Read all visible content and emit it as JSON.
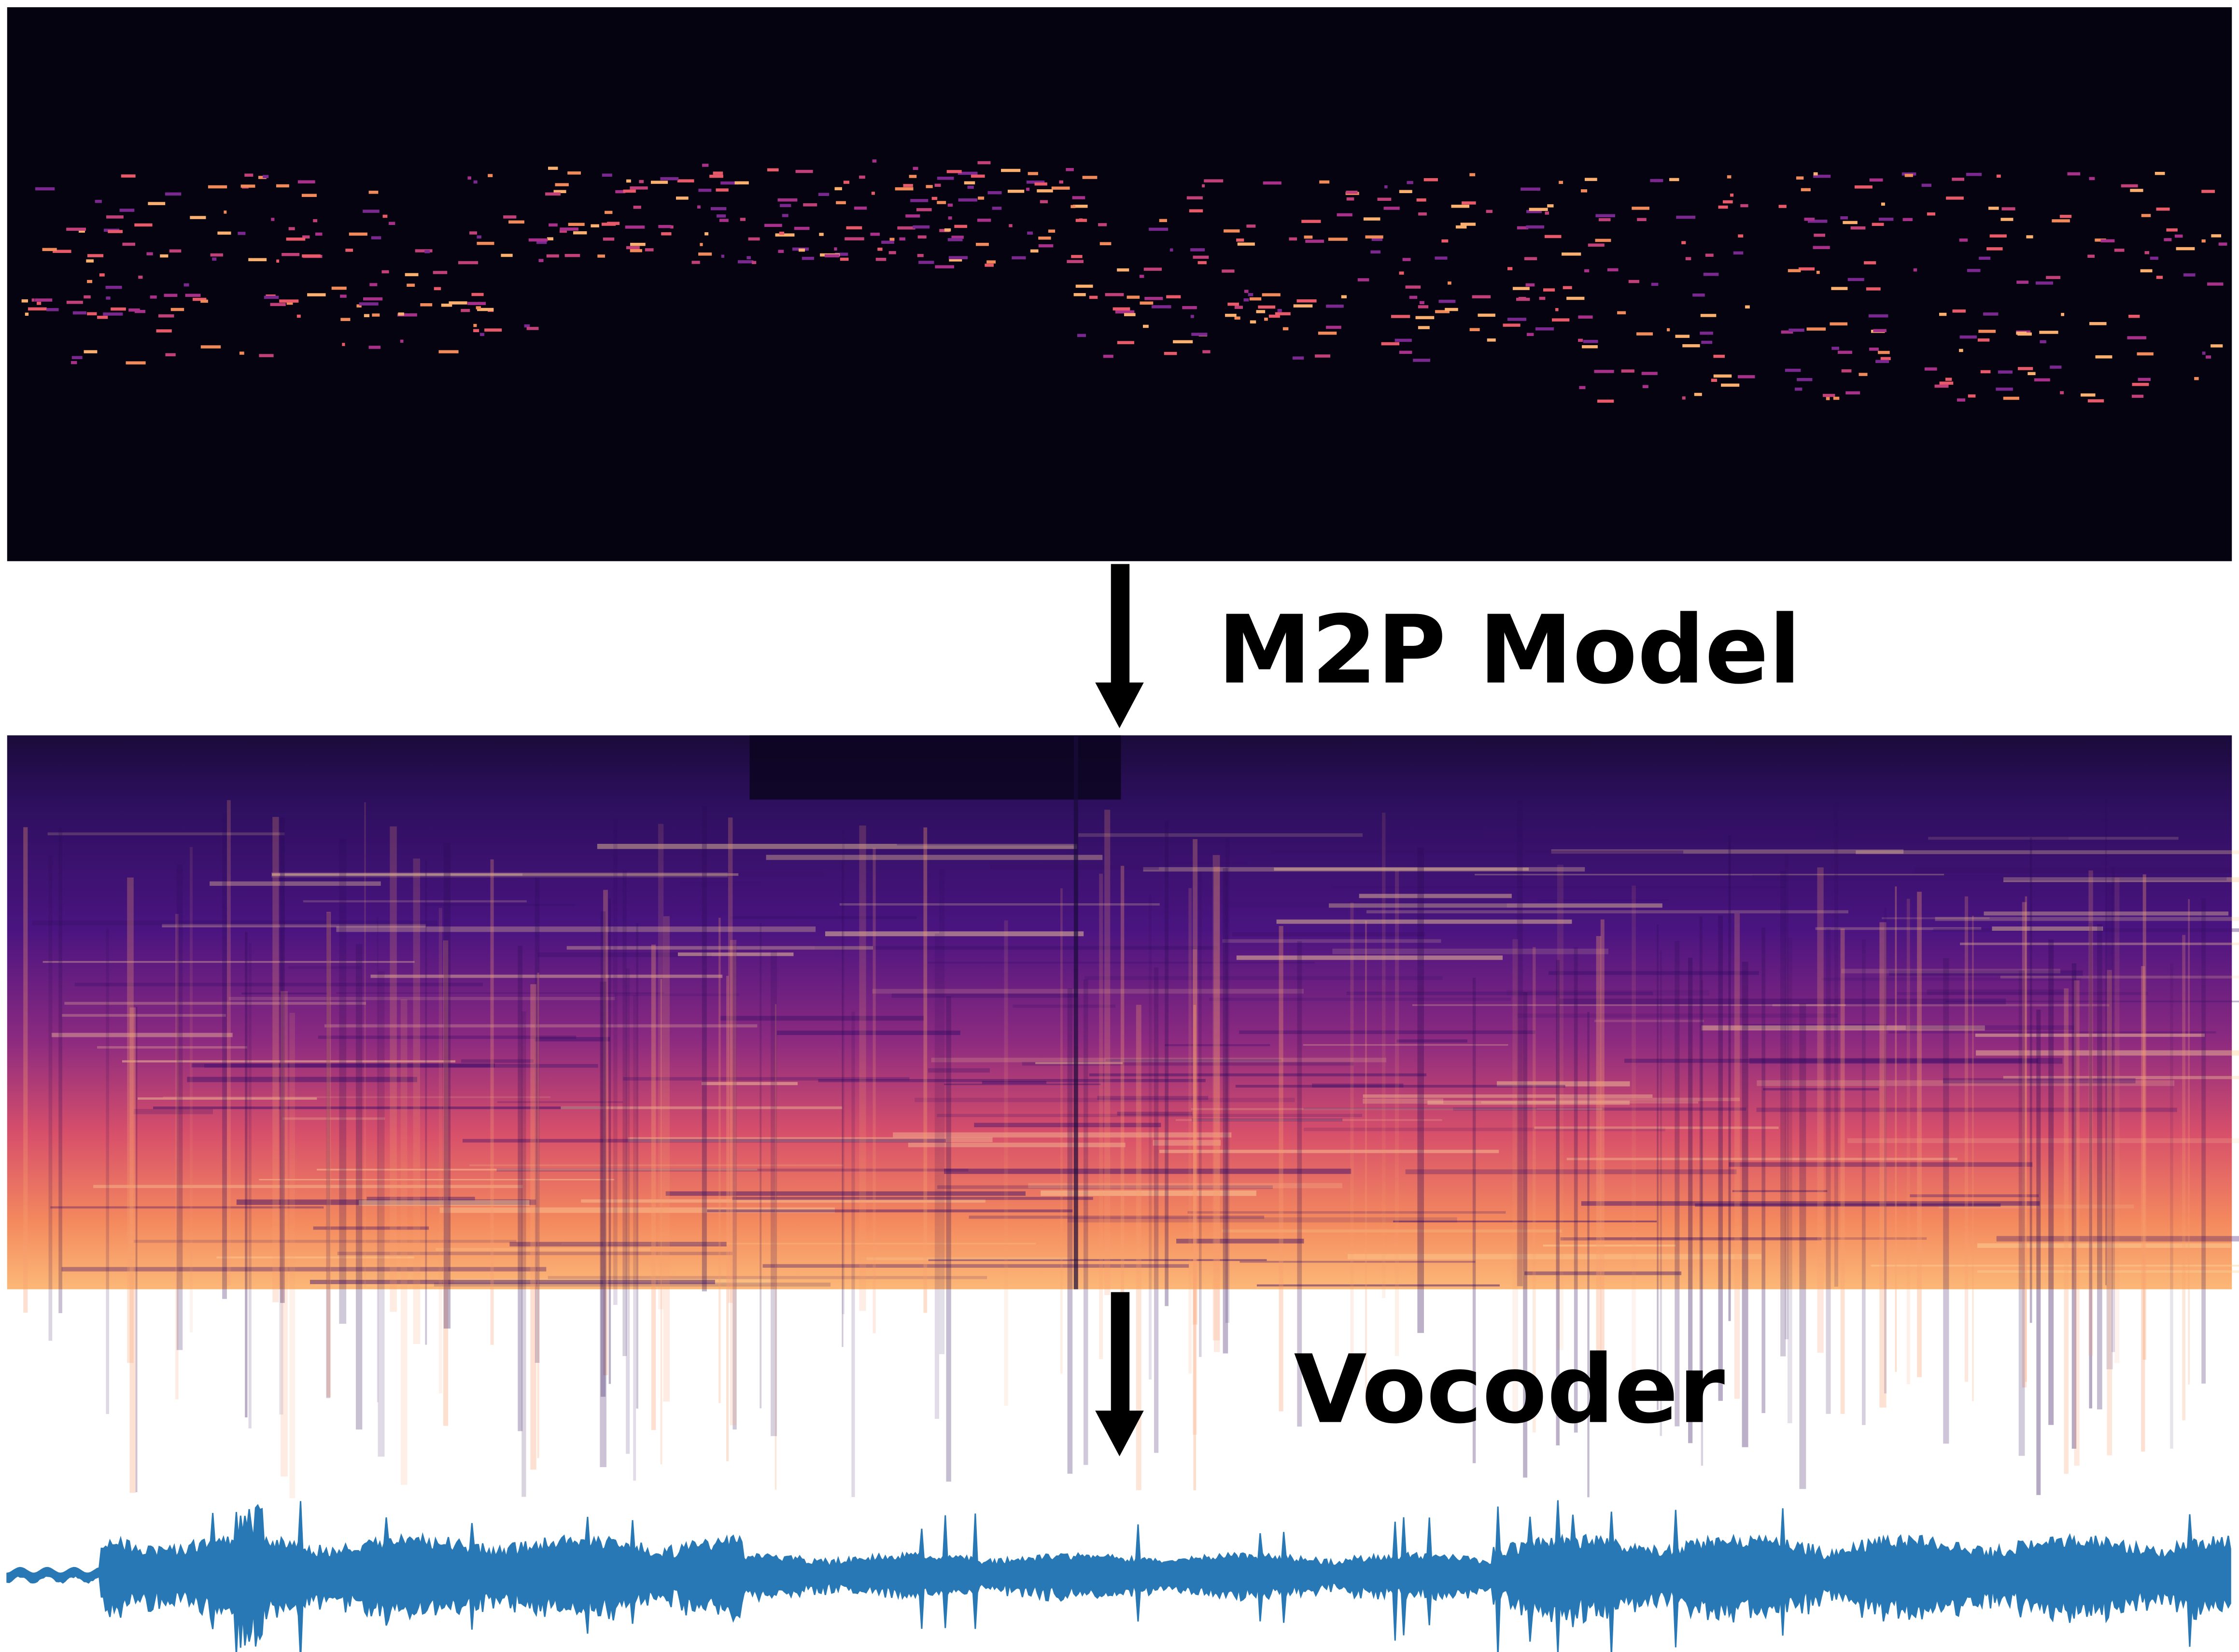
{
  "steps": [
    {
      "label": "M2P Model"
    },
    {
      "label": "Vocoder"
    }
  ]
}
